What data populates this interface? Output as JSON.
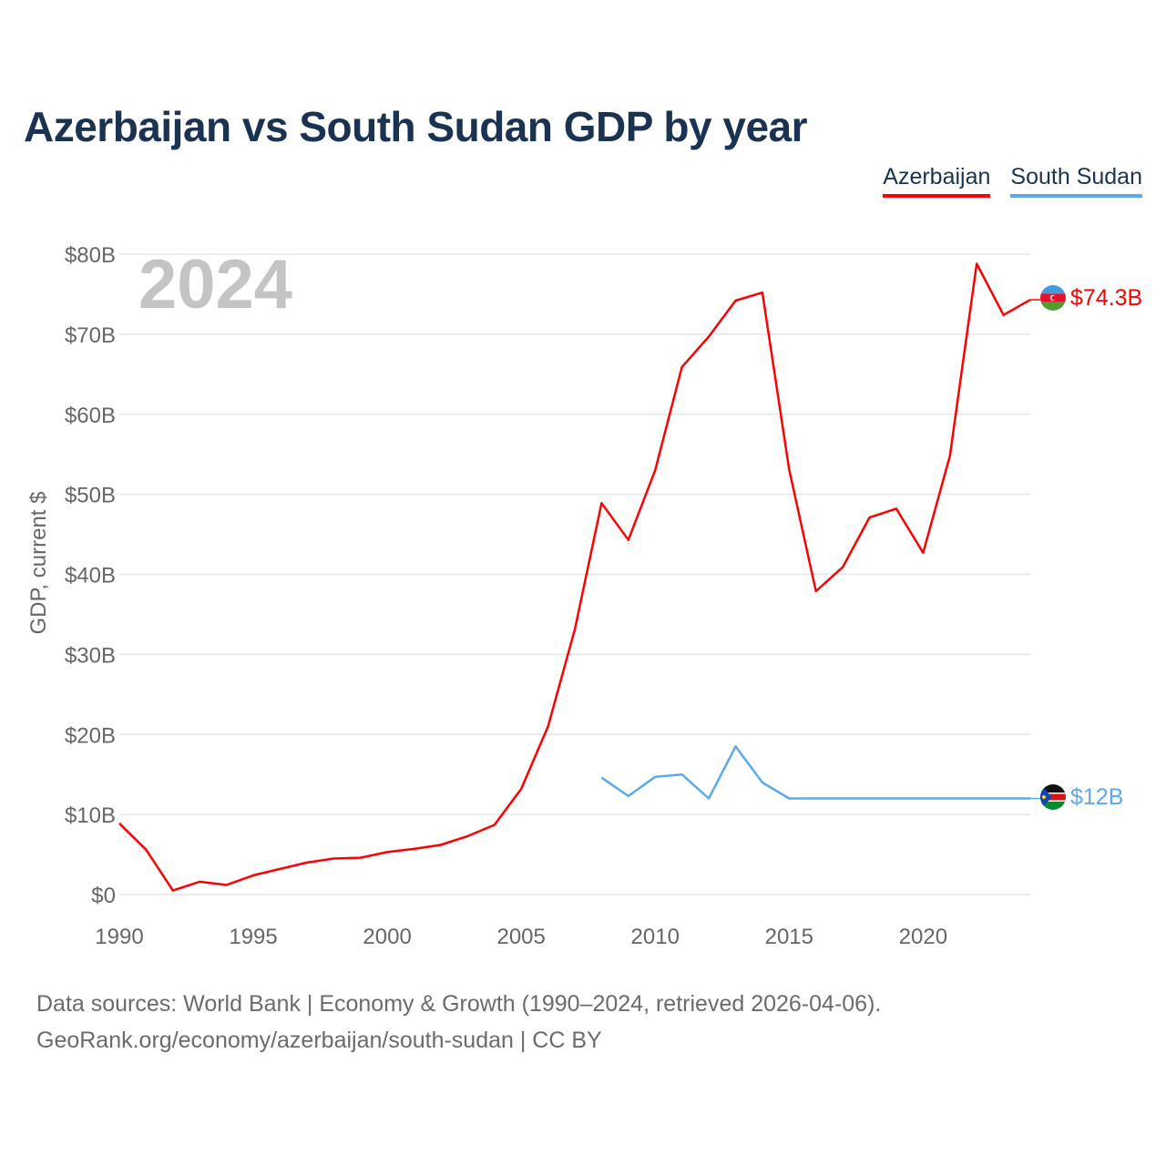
{
  "header": {
    "title": "Azerbaijan vs South Sudan GDP by year"
  },
  "legend": [
    {
      "label": "Azerbaijan",
      "color": "#ff0000"
    },
    {
      "label": "South Sudan",
      "color": "#5ea9e8"
    }
  ],
  "footer": {
    "sources": "Data sources: World Bank | Economy & Growth (1990–2024, retrieved 2026-04-06).",
    "credit": "GeoRank.org/economy/azerbaijan/south-sudan | CC BY"
  },
  "chart_data": {
    "type": "line",
    "title": "Azerbaijan vs South Sudan GDP by year",
    "year_label": "2024",
    "ylabel": "GDP, current $",
    "xlabel": "",
    "xlim": [
      1990,
      2024
    ],
    "ylim": [
      0,
      80
    ],
    "x_ticks": [
      1990,
      1995,
      2000,
      2005,
      2010,
      2015,
      2020
    ],
    "y_ticks": [
      0,
      10,
      20,
      30,
      40,
      50,
      60,
      70,
      80
    ],
    "y_tick_labels": [
      "$0",
      "$10B",
      "$20B",
      "$30B",
      "$40B",
      "$50B",
      "$60B",
      "$70B",
      "$80B"
    ],
    "grid": true,
    "series": [
      {
        "name": "Azerbaijan",
        "color": "#ff0000",
        "end_label": "$74.3B",
        "points": [
          [
            1990,
            8.9
          ],
          [
            1991,
            5.6
          ],
          [
            1992,
            0.5
          ],
          [
            1993,
            1.6
          ],
          [
            1994,
            1.2
          ],
          [
            1995,
            2.4
          ],
          [
            1996,
            3.2
          ],
          [
            1997,
            4.0
          ],
          [
            1998,
            4.5
          ],
          [
            1999,
            4.6
          ],
          [
            2000,
            5.3
          ],
          [
            2001,
            5.7
          ],
          [
            2002,
            6.2
          ],
          [
            2003,
            7.3
          ],
          [
            2004,
            8.7
          ],
          [
            2005,
            13.2
          ],
          [
            2006,
            21.0
          ],
          [
            2007,
            33.1
          ],
          [
            2008,
            48.9
          ],
          [
            2009,
            44.3
          ],
          [
            2010,
            53.0
          ],
          [
            2011,
            65.9
          ],
          [
            2012,
            69.7
          ],
          [
            2013,
            74.2
          ],
          [
            2014,
            75.2
          ],
          [
            2015,
            53.1
          ],
          [
            2016,
            37.9
          ],
          [
            2017,
            40.9
          ],
          [
            2018,
            47.1
          ],
          [
            2019,
            48.2
          ],
          [
            2020,
            42.7
          ],
          [
            2021,
            54.8
          ],
          [
            2022,
            78.8
          ],
          [
            2023,
            72.4
          ],
          [
            2024,
            74.3
          ]
        ]
      },
      {
        "name": "South Sudan",
        "color": "#5ea9e8",
        "end_label": "$12B",
        "points": [
          [
            2008,
            14.6
          ],
          [
            2009,
            12.3
          ],
          [
            2010,
            14.7
          ],
          [
            2011,
            15.0
          ],
          [
            2012,
            12.0
          ],
          [
            2013,
            18.5
          ],
          [
            2014,
            14.0
          ],
          [
            2015,
            12.0
          ],
          [
            2016,
            12.0
          ],
          [
            2017,
            12.0
          ],
          [
            2018,
            12.0
          ],
          [
            2019,
            12.0
          ],
          [
            2020,
            12.0
          ],
          [
            2021,
            12.0
          ],
          [
            2022,
            12.0
          ],
          [
            2023,
            12.0
          ],
          [
            2024,
            12.0
          ]
        ]
      }
    ]
  }
}
